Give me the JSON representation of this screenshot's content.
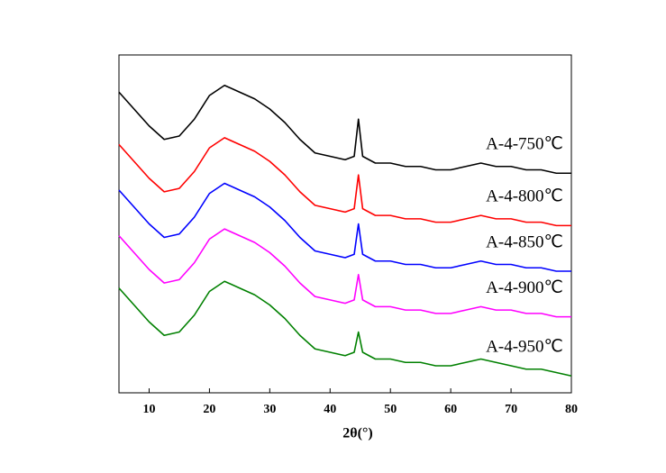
{
  "chart_data": {
    "type": "line",
    "x_label": "2θ(°)",
    "x": [
      5,
      7.5,
      10,
      12.5,
      15,
      17.5,
      20,
      22.5,
      25,
      27.5,
      30,
      32.5,
      35,
      37.5,
      40,
      42.5,
      44,
      44.7,
      45.4,
      47.5,
      50,
      52.5,
      55,
      57.5,
      60,
      62.5,
      65,
      67.5,
      70,
      72.5,
      75,
      77.5,
      80
    ],
    "series": [
      {
        "name": "A-4-750℃",
        "color": "#000000",
        "values": [
          89,
          84,
          79,
          75,
          76,
          81,
          88,
          91,
          89,
          87,
          84,
          80,
          75,
          71,
          70,
          69,
          70,
          81,
          70,
          68,
          68,
          67,
          67,
          66,
          66,
          67,
          68,
          67,
          67,
          66,
          66,
          65,
          65
        ]
      },
      {
        "name": "A-4-800℃",
        "color": "#ff0000",
        "values": [
          73.5,
          68.5,
          63.5,
          59.5,
          60.5,
          65.5,
          72.5,
          75.5,
          73.5,
          71.5,
          68.5,
          64.5,
          59.5,
          55.5,
          54.5,
          53.5,
          54.5,
          64.5,
          54.5,
          52.5,
          52.5,
          51.5,
          51.5,
          50.5,
          50.5,
          51.5,
          52.5,
          51.5,
          51.5,
          50.5,
          50.5,
          49.5,
          49.5
        ]
      },
      {
        "name": "A-4-850℃",
        "color": "#0000ff",
        "values": [
          60,
          55,
          50,
          46,
          47,
          52,
          59,
          62,
          60,
          58,
          55,
          51,
          46,
          42,
          41,
          40,
          41,
          50,
          41,
          39,
          39,
          38,
          38,
          37,
          37,
          38,
          39,
          38,
          38,
          37,
          37,
          36,
          36
        ]
      },
      {
        "name": "A-4-900℃",
        "color": "#ff00ff",
        "values": [
          46.5,
          41.5,
          36.5,
          32.5,
          33.5,
          38.5,
          45.5,
          48.5,
          46.5,
          44.5,
          41.5,
          37.5,
          32.5,
          28.5,
          27.5,
          26.5,
          27.5,
          35,
          27.5,
          25.5,
          25.5,
          24.5,
          24.5,
          23.5,
          23.5,
          24.5,
          25.5,
          24.5,
          24.5,
          23.5,
          23.5,
          22.5,
          22.5
        ]
      },
      {
        "name": "A-4-950℃",
        "color": "#008000",
        "values": [
          31,
          26,
          21,
          17,
          18,
          23,
          30,
          33,
          31,
          29,
          26,
          22,
          17,
          13,
          12,
          11,
          12,
          18,
          12,
          10,
          10,
          9,
          9,
          8,
          8,
          9,
          10,
          9,
          8,
          7,
          7,
          6,
          5
        ]
      }
    ],
    "xlim": [
      5,
      80
    ],
    "xticks": [
      10,
      20,
      30,
      40,
      50,
      60,
      70,
      80
    ],
    "ylim": [
      0,
      100
    ]
  }
}
